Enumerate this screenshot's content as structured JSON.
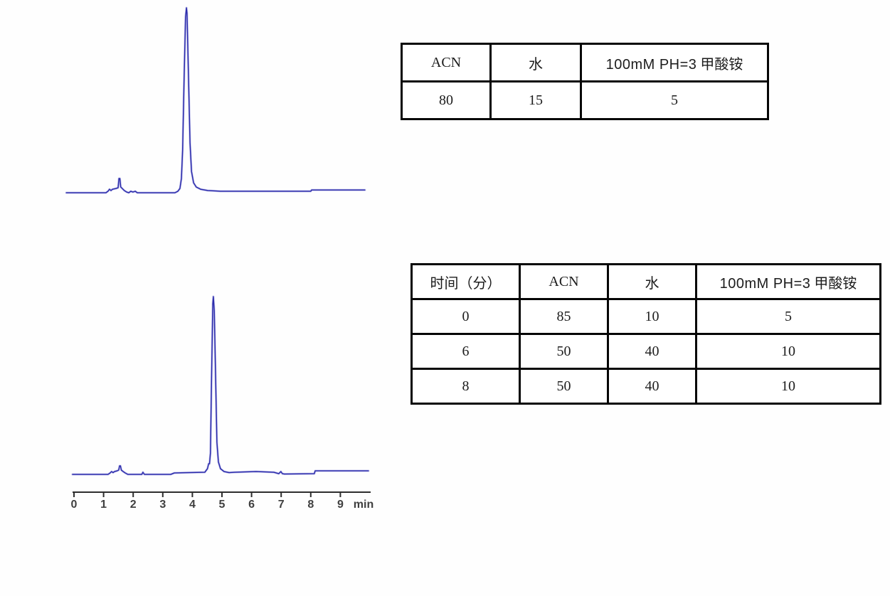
{
  "page": {
    "background_color": "#fefefe",
    "description_visible_content": "Two HPLC chromatograms with mobile-phase composition tables"
  },
  "tables": {
    "isocratic": {
      "headers": {
        "acn": "ACN",
        "water": "水",
        "buffer_latin": "100mM PH=3",
        "buffer_cjk": "甲酸铵"
      },
      "row": [
        "80",
        "15",
        "5"
      ]
    },
    "gradient": {
      "headers": {
        "time": "时间（分）",
        "acn": "ACN",
        "water": "水",
        "buffer_latin": "100mM PH=3",
        "buffer_cjk": "甲酸铵"
      },
      "rows": [
        [
          "0",
          "85",
          "10",
          "5"
        ],
        [
          "6",
          "50",
          "40",
          "10"
        ],
        [
          "8",
          "50",
          "40",
          "10"
        ]
      ]
    }
  },
  "chart_data": [
    {
      "id": "top",
      "type": "line",
      "title": "",
      "description": "HPLC chromatogram (isocratic ACN/water/buffer 80:15:5), no axis drawn",
      "x_unit": "min",
      "x_axis_visible": false,
      "xlim": [
        -0.3,
        10.0
      ],
      "trace_color": "#2c2cab",
      "trace_glow_color": "#9a9ae0",
      "main_peak": {
        "time_min": 3.8,
        "rel_height": 1.0
      },
      "minor_peaks": [
        {
          "time_min": 1.55,
          "rel_height": 0.08
        }
      ],
      "points": [
        [
          -0.26,
          0
        ],
        [
          1.08,
          0
        ],
        [
          1.15,
          0.008
        ],
        [
          1.2,
          0.019
        ],
        [
          1.25,
          0.012
        ],
        [
          1.3,
          0.019
        ],
        [
          1.42,
          0.023
        ],
        [
          1.49,
          0.027
        ],
        [
          1.52,
          0.077
        ],
        [
          1.55,
          0.077
        ],
        [
          1.58,
          0.031
        ],
        [
          1.63,
          0.023
        ],
        [
          1.7,
          0.012
        ],
        [
          1.78,
          0.004
        ],
        [
          1.85,
          0.0
        ],
        [
          1.92,
          0.008
        ],
        [
          1.99,
          0.004
        ],
        [
          2.07,
          0.008
        ],
        [
          2.14,
          0.0
        ],
        [
          3.41,
          0.0
        ],
        [
          3.51,
          0.008
        ],
        [
          3.58,
          0.023
        ],
        [
          3.63,
          0.077
        ],
        [
          3.67,
          0.23
        ],
        [
          3.72,
          0.62
        ],
        [
          3.77,
          0.95
        ],
        [
          3.8,
          1.0
        ],
        [
          3.82,
          0.97
        ],
        [
          3.87,
          0.62
        ],
        [
          3.92,
          0.27
        ],
        [
          3.97,
          0.115
        ],
        [
          4.04,
          0.054
        ],
        [
          4.13,
          0.031
        ],
        [
          4.28,
          0.019
        ],
        [
          4.52,
          0.012
        ],
        [
          4.95,
          0.008
        ],
        [
          6.63,
          0.008
        ],
        [
          8.0,
          0.008
        ],
        [
          8.03,
          0.015
        ],
        [
          9.83,
          0.015
        ]
      ]
    },
    {
      "id": "bottom",
      "type": "line",
      "title": "",
      "description": "HPLC chromatogram (gradient program), x axis 0-9 min",
      "x_unit": "min",
      "x_axis_visible": true,
      "xlim": [
        -0.05,
        10.0
      ],
      "trace_color": "#2c2cab",
      "trace_glow_color": "#9a9ae0",
      "main_peak": {
        "time_min": 4.7,
        "rel_height": 1.0
      },
      "minor_peaks": [
        {
          "time_min": 1.55,
          "rel_height": 0.05
        }
      ],
      "axis": {
        "ticks": [
          "0",
          "1",
          "2",
          "3",
          "4",
          "5",
          "6",
          "7",
          "8",
          "9"
        ],
        "unit_label": "min",
        "color": "#2e2e2e",
        "label_color": "#3f3f3f"
      },
      "points": [
        [
          -0.05,
          0
        ],
        [
          1.15,
          0
        ],
        [
          1.22,
          0.008
        ],
        [
          1.27,
          0.016
        ],
        [
          1.32,
          0.01
        ],
        [
          1.37,
          0.016
        ],
        [
          1.46,
          0.02
        ],
        [
          1.51,
          0.024
        ],
        [
          1.54,
          0.048
        ],
        [
          1.57,
          0.048
        ],
        [
          1.6,
          0.024
        ],
        [
          1.66,
          0.016
        ],
        [
          1.73,
          0.008
        ],
        [
          1.82,
          0.0
        ],
        [
          2.29,
          0.0
        ],
        [
          2.33,
          0.012
        ],
        [
          2.38,
          0.0
        ],
        [
          3.27,
          0.0
        ],
        [
          3.39,
          0.008
        ],
        [
          4.42,
          0.012
        ],
        [
          4.51,
          0.032
        ],
        [
          4.55,
          0.06
        ],
        [
          4.58,
          0.06
        ],
        [
          4.61,
          0.12
        ],
        [
          4.65,
          0.55
        ],
        [
          4.69,
          0.96
        ],
        [
          4.71,
          1.0
        ],
        [
          4.74,
          0.92
        ],
        [
          4.79,
          0.5
        ],
        [
          4.83,
          0.18
        ],
        [
          4.88,
          0.07
        ],
        [
          4.95,
          0.032
        ],
        [
          5.07,
          0.016
        ],
        [
          5.24,
          0.01
        ],
        [
          5.43,
          0.012
        ],
        [
          6.15,
          0.016
        ],
        [
          6.75,
          0.012
        ],
        [
          6.92,
          0.004
        ],
        [
          6.99,
          0.016
        ],
        [
          7.04,
          0.004
        ],
        [
          7.11,
          0.002
        ],
        [
          8.12,
          0.004
        ],
        [
          8.15,
          0.02
        ],
        [
          9.95,
          0.02
        ]
      ]
    }
  ]
}
